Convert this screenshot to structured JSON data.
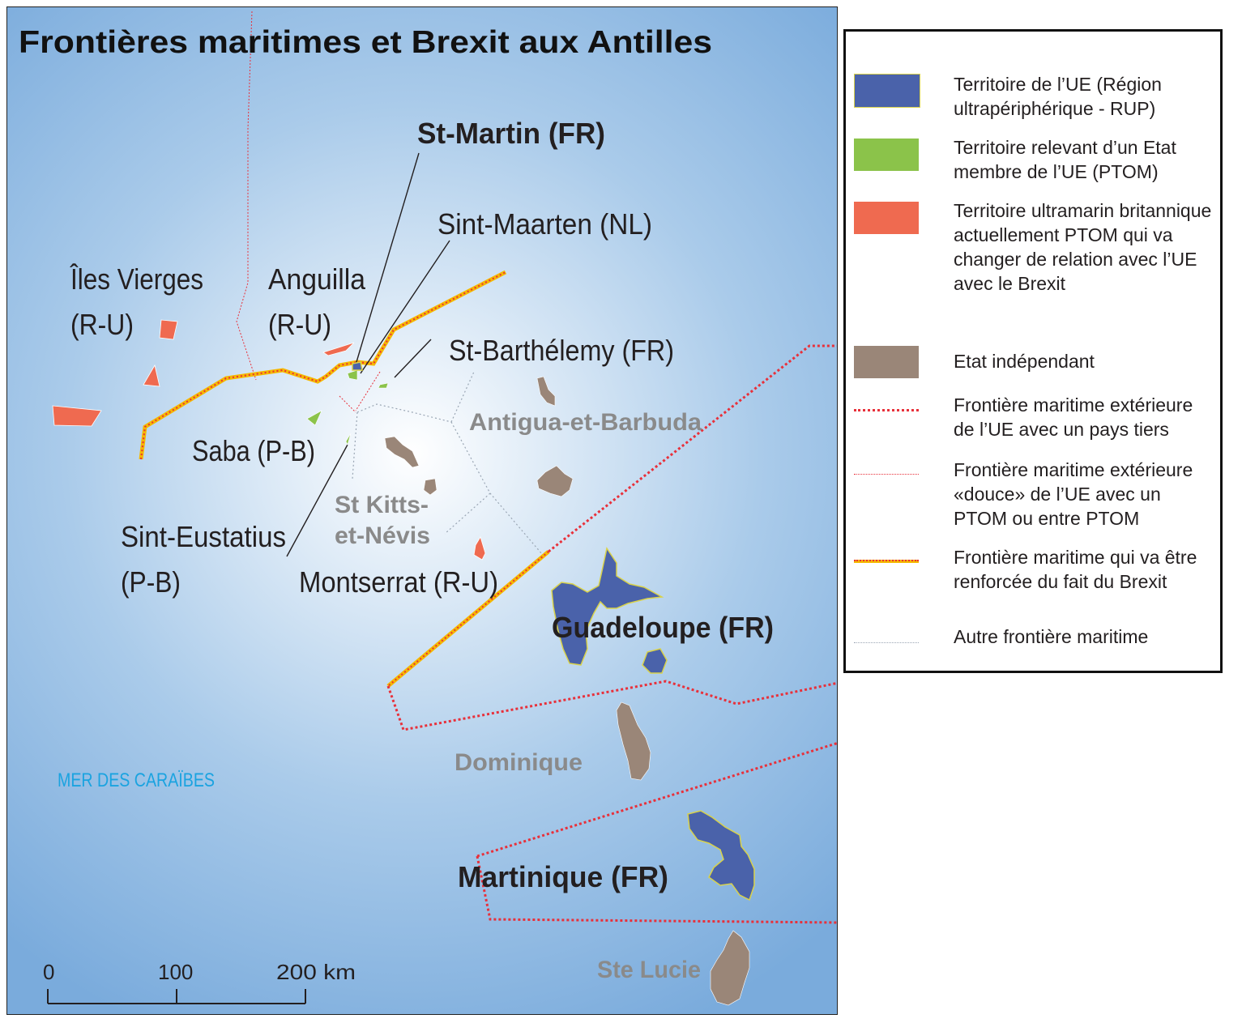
{
  "title": "Frontières maritimes et Brexit aux Antilles",
  "sea_label": "MER DES CARAÏBES",
  "places": {
    "st_martin": "St-Martin (FR)",
    "sint_maarten": "Sint-Maarten (NL)",
    "iles_vierges_1": "Îles Vierges",
    "iles_vierges_2": "(R-U)",
    "anguilla_1": "Anguilla",
    "anguilla_2": "(R-U)",
    "st_barthelemy": "St-Barthélemy (FR)",
    "antigua": "Antigua-et-Barbuda",
    "saba": "Saba (P-B)",
    "st_kitts_1": "St Kitts-",
    "st_kitts_2": "et-Névis",
    "sint_eustatius_1": "Sint-Eustatius",
    "sint_eustatius_2": "(P-B)",
    "montserrat": "Montserrat (R-U)",
    "guadeloupe": "Guadeloupe (FR)",
    "dominique": "Dominique",
    "martinique": "Martinique (FR)",
    "ste_lucie": "Ste Lucie"
  },
  "scale": {
    "ticks": [
      "0",
      "100",
      "200 km"
    ]
  },
  "legend": {
    "items": [
      {
        "text": "Territoire de l’UE (Région ultrapériphérique - RUP)",
        "color": "#4a62aa"
      },
      {
        "text": "Territoire relevant d’un Etat membre de l’UE (PTOM)",
        "color": "#8bc34a"
      },
      {
        "text": "Territoire ultramarin britannique actuellement PTOM qui va changer de relation avec l’UE avec le Brexit",
        "color": "#ef6a50"
      },
      {
        "text": "Etat indépendant",
        "color": "#9a8678"
      },
      {
        "text": "Frontière maritime extérieure de l’UE avec un pays tiers",
        "color": "#e8303a"
      },
      {
        "text": "Frontière maritime extérieure «douce» de l’UE avec un PTOM ou entre PTOM",
        "color": "#e8303a"
      },
      {
        "text": "Frontière maritime qui va être renforcée du fait du Brexit",
        "color": "#f5b800"
      },
      {
        "text": "Autre frontière maritime",
        "color": "#aab4c0"
      }
    ]
  },
  "colors": {
    "rup": "#4a62aa",
    "ptom": "#8bc34a",
    "uk": "#ef6a50",
    "independent": "#9a8678",
    "sea_light": "#ffffff",
    "sea_dark": "#7aabdc",
    "sea_label": "#1aa3e0",
    "grey_label": "#8a8a8a"
  }
}
